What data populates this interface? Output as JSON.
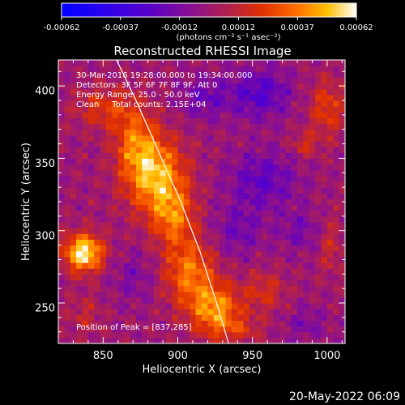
{
  "chart_data": {
    "type": "heatmap",
    "title": "Reconstructed RHESSI Image",
    "xlabel": "Heliocentric X (arcsec)",
    "ylabel": "Heliocentric Y (arcsec)",
    "xlim": [
      820,
      1012
    ],
    "ylim": [
      222,
      418
    ],
    "x_ticks": [
      850,
      900,
      950,
      1000
    ],
    "y_ticks": [
      250,
      300,
      350,
      400
    ],
    "colorbar": {
      "range": [
        -0.00062,
        0.00062
      ],
      "tick_labels": [
        "-0.00062",
        "-0.00037",
        "-0.00012",
        "0.00012",
        "0.00037",
        "0.00062"
      ],
      "units": "(photons cm⁻² s⁻¹ asec⁻²)"
    },
    "annotations": [
      "30-Mar-2016 19:28:00.000 to 19:34:00.000",
      "Detectors: 3F 5F 6F 7F 8F 9F, Att 0",
      "Energy Range: 25.0 - 50.0 keV",
      "Clean     Total counts: 2.15E+04"
    ],
    "peak_label": "Position of Peak = [837,285]",
    "peak": [
      837,
      285
    ],
    "limb_curve": {
      "x": [
        859,
        872,
        887,
        902,
        915,
        926,
        934
      ],
      "y": [
        418,
        390,
        355,
        320,
        285,
        250,
        222
      ]
    },
    "sources": [
      {
        "x": 885,
        "y": 338,
        "amplitude": 0.00048,
        "sx": 14,
        "sy": 18
      },
      {
        "x": 872,
        "y": 362,
        "amplitude": 0.0003,
        "sx": 10,
        "sy": 16
      },
      {
        "x": 897,
        "y": 310,
        "amplitude": 0.00032,
        "sx": 10,
        "sy": 14
      },
      {
        "x": 908,
        "y": 272,
        "amplitude": 0.00036,
        "sx": 12,
        "sy": 16
      },
      {
        "x": 925,
        "y": 246,
        "amplitude": 0.00042,
        "sx": 12,
        "sy": 12
      },
      {
        "x": 837,
        "y": 285,
        "amplitude": 0.00062,
        "sx": 9,
        "sy": 9
      },
      {
        "x": 852,
        "y": 385,
        "amplitude": 0.00022,
        "sx": 14,
        "sy": 10
      },
      {
        "x": 1000,
        "y": 385,
        "amplitude": 0.00024,
        "sx": 8,
        "sy": 14
      },
      {
        "x": 985,
        "y": 360,
        "amplitude": 0.00018,
        "sx": 6,
        "sy": 6
      },
      {
        "x": 958,
        "y": 258,
        "amplitude": 0.00018,
        "sx": 10,
        "sy": 10
      },
      {
        "x": 1002,
        "y": 290,
        "amplitude": 0.00014,
        "sx": 6,
        "sy": 14
      },
      {
        "x": 838,
        "y": 242,
        "amplitude": 0.00012,
        "sx": 8,
        "sy": 10
      },
      {
        "x": 940,
        "y": 232,
        "amplitude": 0.00016,
        "sx": 12,
        "sy": 6
      },
      {
        "x": 955,
        "y": 395,
        "amplitude": -0.00026,
        "sx": 14,
        "sy": 12
      },
      {
        "x": 918,
        "y": 392,
        "amplitude": -0.00018,
        "sx": 12,
        "sy": 10
      },
      {
        "x": 957,
        "y": 335,
        "amplitude": -0.00022,
        "sx": 16,
        "sy": 14
      },
      {
        "x": 940,
        "y": 300,
        "amplitude": -0.00016,
        "sx": 12,
        "sy": 12
      },
      {
        "x": 982,
        "y": 300,
        "amplitude": -0.00014,
        "sx": 10,
        "sy": 10
      },
      {
        "x": 870,
        "y": 268,
        "amplitude": -0.00012,
        "sx": 10,
        "sy": 12
      },
      {
        "x": 985,
        "y": 236,
        "amplitude": -0.00012,
        "sx": 10,
        "sy": 8
      }
    ]
  },
  "footer": {
    "date": "20-May-2022 06:09"
  }
}
